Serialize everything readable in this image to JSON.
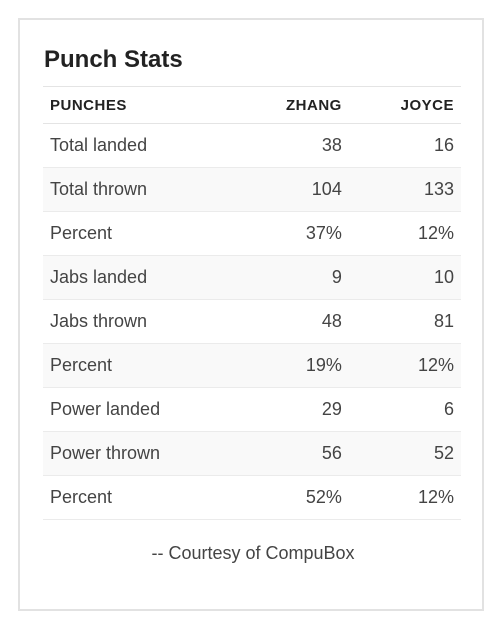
{
  "title": "Punch Stats",
  "headers": {
    "label": "PUNCHES",
    "fighter_a": "ZHANG",
    "fighter_b": "JOYCE"
  },
  "rows": [
    {
      "label": "Total landed",
      "a": "38",
      "b": "16"
    },
    {
      "label": "Total thrown",
      "a": "104",
      "b": "133"
    },
    {
      "label": "Percent",
      "a": "37%",
      "b": "12%"
    },
    {
      "label": "Jabs landed",
      "a": "9",
      "b": "10"
    },
    {
      "label": "Jabs thrown",
      "a": "48",
      "b": "81"
    },
    {
      "label": "Percent",
      "a": "19%",
      "b": "12%"
    },
    {
      "label": "Power landed",
      "a": "29",
      "b": "6"
    },
    {
      "label": "Power thrown",
      "a": "56",
      "b": "52"
    },
    {
      "label": "Percent",
      "a": "52%",
      "b": "12%"
    }
  ],
  "credit": "-- Courtesy of CompuBox",
  "colors": {
    "border": "#e2e2e2",
    "row_alt": "#f9f9f9",
    "text": "#444444",
    "heading": "#222222"
  }
}
